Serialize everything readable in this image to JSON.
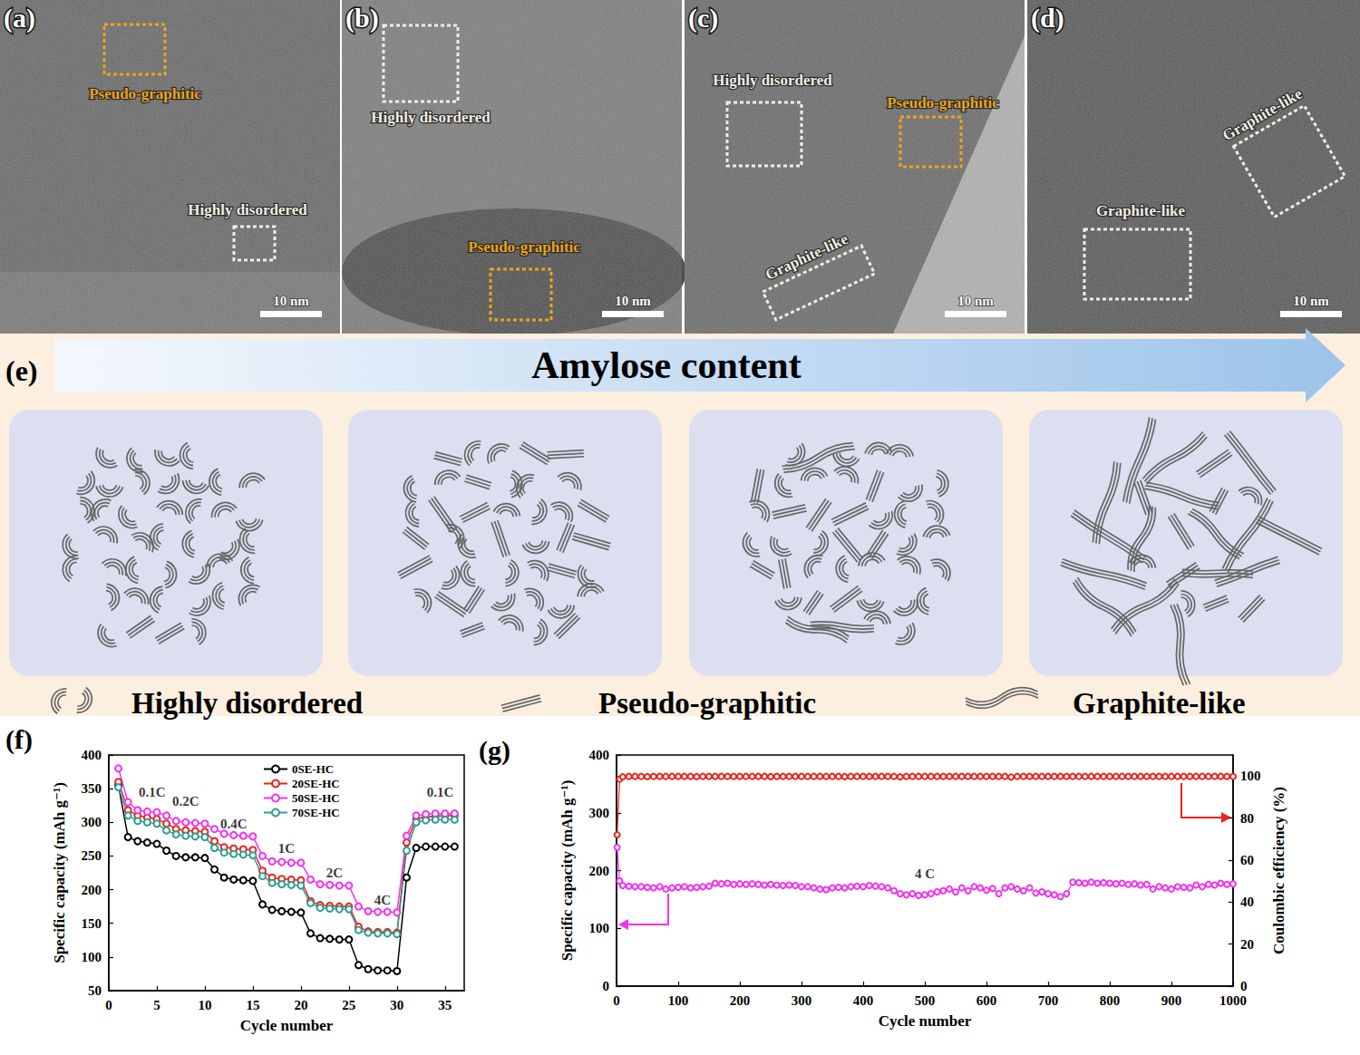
{
  "panels": [
    {
      "letter": "(a)",
      "scale_bar": "10 nm",
      "regions": [
        {
          "label": "Pseudo-graphitic",
          "color": "#e8a51c"
        },
        {
          "label": "Highly disordered",
          "color": "#f2ede4"
        }
      ]
    },
    {
      "letter": "(b)",
      "scale_bar": "10 nm",
      "regions": [
        {
          "label": "Highly disordered",
          "color": "#f2ede4"
        },
        {
          "label": "Pseudo-graphitic",
          "color": "#e8a51c"
        }
      ]
    },
    {
      "letter": "(c)",
      "scale_bar": "10 nm",
      "regions": [
        {
          "label": "Highly disordered",
          "color": "#f2ede4"
        },
        {
          "label": "Pseudo-graphitic",
          "color": "#e8a51c"
        },
        {
          "label": "Graphite-like",
          "color": "#f2ede4"
        }
      ]
    },
    {
      "letter": "(d)",
      "scale_bar": "10 nm",
      "regions": [
        {
          "label": "Graphite-like",
          "color": "#f2ede4"
        },
        {
          "label": "Graphite-like",
          "color": "#f2ede4"
        }
      ]
    }
  ],
  "schematic": {
    "letter": "(e)",
    "arrow_label": "Amylose content",
    "classes": [
      "Highly disordered",
      "Pseudo-graphitic",
      "Graphite-like"
    ]
  },
  "chart_data": [
    {
      "type": "line",
      "title": "(f)",
      "xlabel": "Cycle number",
      "ylabel": "Specific capacity (mAh g⁻¹)",
      "x": [
        1,
        2,
        3,
        4,
        5,
        6,
        7,
        8,
        9,
        10,
        11,
        12,
        13,
        14,
        15,
        16,
        17,
        18,
        19,
        20,
        21,
        22,
        23,
        24,
        25,
        26,
        27,
        28,
        29,
        30,
        31,
        32,
        33,
        34,
        35,
        36
      ],
      "xlim": [
        0,
        37
      ],
      "xticks": [
        0,
        5,
        10,
        15,
        20,
        25,
        30,
        35
      ],
      "ylim": [
        50,
        400
      ],
      "yticks": [
        50,
        100,
        150,
        200,
        250,
        300,
        350,
        400
      ],
      "grid": false,
      "legend": "upper center",
      "series": [
        {
          "name": "0SE-HC",
          "color": "#000000",
          "marker": "circle",
          "values": [
            355,
            278,
            272,
            270,
            268,
            258,
            250,
            248,
            248,
            247,
            230,
            218,
            215,
            214,
            213,
            178,
            170,
            168,
            167,
            166,
            135,
            128,
            127,
            126,
            126,
            88,
            82,
            80,
            80,
            79,
            218,
            262,
            264,
            264,
            264,
            264
          ]
        },
        {
          "name": "20SE-HC",
          "color": "#e8251f",
          "marker": "circle",
          "values": [
            360,
            318,
            310,
            307,
            305,
            298,
            290,
            288,
            287,
            286,
            272,
            263,
            261,
            260,
            259,
            228,
            218,
            216,
            215,
            214,
            183,
            177,
            176,
            175,
            175,
            145,
            138,
            137,
            137,
            136,
            270,
            305,
            308,
            309,
            310,
            310
          ]
        },
        {
          "name": "50SE-HC",
          "color": "#f033f0",
          "marker": "circle",
          "values": [
            380,
            330,
            318,
            316,
            315,
            310,
            302,
            300,
            299,
            298,
            290,
            283,
            281,
            280,
            279,
            250,
            242,
            241,
            240,
            240,
            215,
            208,
            207,
            206,
            206,
            175,
            168,
            167,
            167,
            166,
            280,
            310,
            312,
            313,
            313,
            313
          ]
        },
        {
          "name": "70SE-HC",
          "color": "#2e9e94",
          "marker": "circle",
          "values": [
            352,
            310,
            302,
            300,
            298,
            288,
            282,
            280,
            279,
            278,
            262,
            255,
            253,
            252,
            251,
            220,
            210,
            208,
            207,
            206,
            180,
            173,
            172,
            171,
            171,
            140,
            136,
            135,
            135,
            134,
            258,
            300,
            303,
            304,
            304,
            304
          ]
        }
      ],
      "annotations": [
        {
          "text": "0.1C",
          "x": 4.5,
          "y": 345
        },
        {
          "text": "0.2C",
          "x": 8,
          "y": 332
        },
        {
          "text": "0.4C",
          "x": 13,
          "y": 298
        },
        {
          "text": "1C",
          "x": 18.5,
          "y": 262
        },
        {
          "text": "2C",
          "x": 23.5,
          "y": 225
        },
        {
          "text": "4C",
          "x": 28.5,
          "y": 185
        },
        {
          "text": "0.1C",
          "x": 34.5,
          "y": 345
        }
      ]
    },
    {
      "type": "line",
      "title": "(g)",
      "xlabel": "Cycle number",
      "ylabel": "Specific capacity (mAh g⁻¹)",
      "y2label": "Coulombic efficiency (%)",
      "x": [
        1,
        5,
        10,
        20,
        30,
        40,
        50,
        60,
        70,
        80,
        90,
        100,
        110,
        120,
        130,
        140,
        150,
        160,
        170,
        180,
        190,
        200,
        210,
        220,
        230,
        240,
        250,
        260,
        270,
        280,
        290,
        300,
        310,
        320,
        330,
        340,
        350,
        360,
        370,
        380,
        390,
        400,
        410,
        420,
        430,
        440,
        450,
        460,
        470,
        480,
        490,
        500,
        510,
        520,
        530,
        540,
        550,
        560,
        570,
        580,
        590,
        600,
        610,
        620,
        630,
        640,
        650,
        660,
        670,
        680,
        690,
        700,
        710,
        720,
        730,
        740,
        750,
        760,
        770,
        780,
        790,
        800,
        810,
        820,
        830,
        840,
        850,
        860,
        870,
        880,
        890,
        900,
        910,
        920,
        930,
        940,
        950,
        960,
        970,
        980,
        990,
        1000
      ],
      "xlim": [
        0,
        1000
      ],
      "xticks": [
        0,
        100,
        200,
        300,
        400,
        500,
        600,
        700,
        800,
        900,
        1000
      ],
      "ylim": [
        0,
        400
      ],
      "yticks": [
        0,
        100,
        200,
        300,
        400
      ],
      "y2lim": [
        0,
        110
      ],
      "y2ticks": [
        0,
        20,
        40,
        60,
        80,
        100
      ],
      "grid": false,
      "series": [
        {
          "name": "Specific capacity",
          "axis": "y",
          "color": "#f033f0",
          "marker": "circle",
          "values": [
            240,
            182,
            174,
            173,
            172,
            172,
            171,
            170,
            172,
            168,
            170,
            171,
            172,
            170,
            171,
            172,
            173,
            178,
            177,
            178,
            176,
            177,
            176,
            177,
            176,
            175,
            176,
            175,
            174,
            175,
            174,
            172,
            172,
            170,
            168,
            167,
            170,
            171,
            170,
            172,
            173,
            172,
            174,
            173,
            172,
            170,
            165,
            160,
            158,
            160,
            157,
            158,
            160,
            163,
            165,
            168,
            163,
            170,
            165,
            172,
            170,
            166,
            169,
            160,
            170,
            172,
            168,
            165,
            170,
            161,
            163,
            160,
            158,
            155,
            160,
            180,
            179,
            178,
            180,
            178,
            179,
            178,
            177,
            178,
            176,
            177,
            175,
            176,
            168,
            172,
            170,
            168,
            172,
            171,
            170,
            175,
            172,
            176,
            175,
            178,
            176,
            177
          ]
        },
        {
          "name": "Coulombic efficiency",
          "axis": "y2",
          "color": "#e8251f",
          "marker": "circle",
          "values": [
            72,
            98.5,
            99.6,
            99.8,
            99.8,
            99.8,
            99.7,
            99.8,
            99.8,
            99.8,
            99.8,
            99.8,
            99.8,
            99.8,
            99.7,
            99.8,
            99.8,
            99.8,
            99.8,
            99.8,
            99.8,
            99.8,
            99.8,
            99.8,
            99.8,
            99.8,
            99.7,
            99.8,
            99.8,
            99.8,
            99.8,
            99.8,
            99.8,
            99.8,
            99.8,
            99.8,
            99.8,
            99.8,
            99.7,
            99.8,
            99.8,
            99.8,
            99.8,
            99.8,
            99.8,
            99.8,
            99.8,
            99.6,
            99.8,
            99.8,
            99.8,
            99.8,
            99.8,
            99.8,
            99.8,
            99.8,
            99.8,
            99.8,
            99.8,
            99.8,
            99.8,
            99.8,
            99.8,
            99.8,
            99.8,
            99.5,
            99.8,
            99.8,
            99.8,
            99.8,
            99.8,
            99.8,
            99.8,
            99.8,
            99.8,
            99.8,
            99.8,
            99.8,
            99.8,
            99.8,
            99.8,
            99.8,
            99.8,
            99.8,
            99.8,
            99.8,
            99.8,
            99.8,
            99.8,
            99.8,
            99.8,
            99.8,
            99.8,
            99.8,
            99.8,
            99.8,
            99.8,
            99.8,
            99.8,
            99.8,
            99.8,
            99.8
          ]
        }
      ],
      "annotations": [
        {
          "text": "4 C",
          "x": 500,
          "y": 195
        }
      ]
    }
  ]
}
